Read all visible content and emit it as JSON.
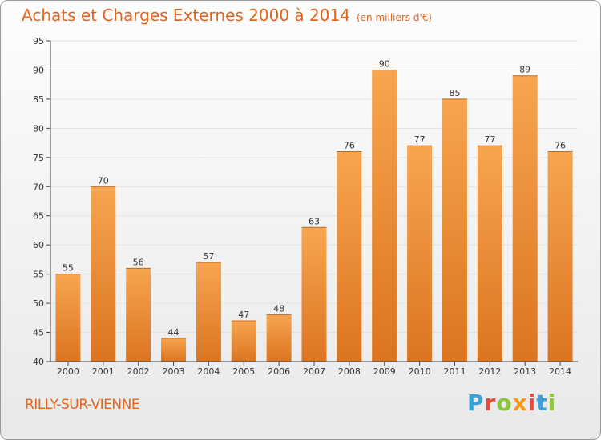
{
  "header": {
    "title": "Achats et Charges Externes 2000 à 2014",
    "unit": "(en milliers d'€)"
  },
  "footer": {
    "commune": "RILLY-SUR-VIENNE",
    "brand": "Proxiti",
    "brand_letters": [
      "P",
      "r",
      "o",
      "x",
      "i",
      "t",
      "i"
    ]
  },
  "colors": {
    "bar_light": "#f7a54f",
    "bar_dark": "#dc7420",
    "title": "#e2651f",
    "grid": "#e2e2e2",
    "axis": "#444444"
  },
  "chart_data": {
    "type": "bar",
    "title": "Achats et Charges Externes 2000 à 2014",
    "subtitle": "(en milliers d'€)",
    "categories": [
      "2000",
      "2001",
      "2002",
      "2003",
      "2004",
      "2005",
      "2006",
      "2007",
      "2008",
      "2009",
      "2010",
      "2011",
      "2012",
      "2013",
      "2014"
    ],
    "values": [
      55,
      70,
      56,
      44,
      57,
      47,
      48,
      63,
      76,
      90,
      77,
      85,
      77,
      89,
      76
    ],
    "ylim": [
      40,
      95
    ],
    "yticks": [
      40,
      45,
      50,
      55,
      60,
      65,
      70,
      75,
      80,
      85,
      90,
      95
    ],
    "grid": true,
    "data_labels": true
  }
}
